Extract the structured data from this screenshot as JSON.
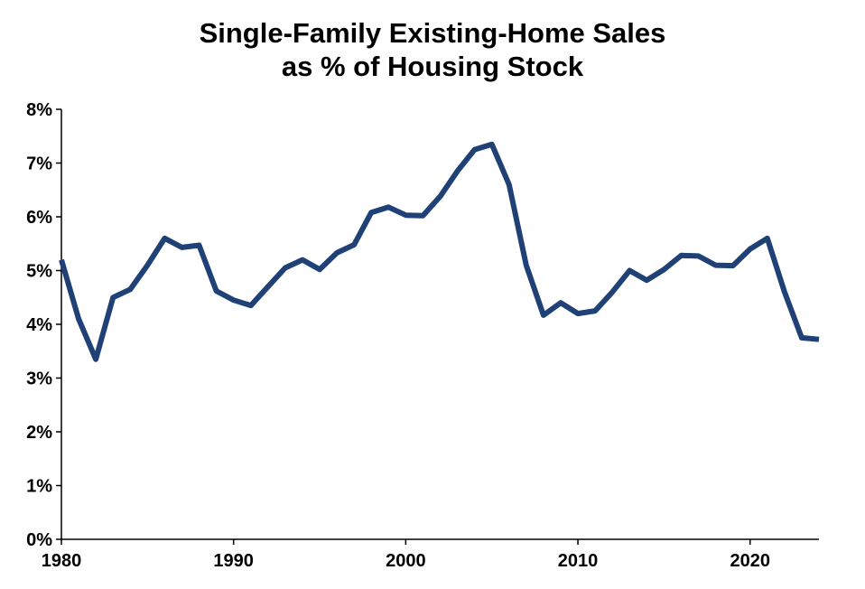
{
  "chart_data": {
    "type": "line",
    "title_lines": [
      "Single-Family Existing-Home Sales",
      "as % of Housing Stock"
    ],
    "xlabel": "",
    "ylabel": "",
    "xlim": [
      1980,
      2024
    ],
    "ylim": [
      0,
      8
    ],
    "x_ticks": [
      1980,
      1990,
      2000,
      2010,
      2020
    ],
    "x_tick_labels": [
      "1980",
      "1990",
      "2000",
      "2010",
      "2020"
    ],
    "y_ticks": [
      0,
      1,
      2,
      3,
      4,
      5,
      6,
      7,
      8
    ],
    "y_tick_labels": [
      "0%",
      "1%",
      "2%",
      "3%",
      "4%",
      "5%",
      "6%",
      "7%",
      "8%"
    ],
    "grid": false,
    "legend": "none",
    "line_color": "#1F4176",
    "series": [
      {
        "x": [
          1980,
          1981,
          1982,
          1983,
          1984,
          1985,
          1986,
          1987,
          1988,
          1989,
          1990,
          1991,
          1992,
          1993,
          1994,
          1995,
          1996,
          1997,
          1998,
          1999,
          2000,
          2001,
          2002,
          2003,
          2004,
          2005,
          2006,
          2007,
          2008,
          2009,
          2010,
          2011,
          2012,
          2013,
          2014,
          2015,
          2016,
          2017,
          2018,
          2019,
          2020,
          2021,
          2022,
          2023,
          2024
        ],
        "values": [
          5.2,
          4.1,
          3.35,
          4.5,
          4.65,
          5.1,
          5.6,
          5.43,
          5.47,
          4.62,
          4.45,
          4.35,
          4.7,
          5.05,
          5.2,
          5.02,
          5.33,
          5.48,
          6.08,
          6.18,
          6.03,
          6.02,
          6.38,
          6.85,
          7.25,
          7.35,
          6.6,
          5.1,
          4.17,
          4.4,
          4.2,
          4.25,
          4.6,
          5.0,
          4.82,
          5.02,
          5.28,
          5.27,
          5.1,
          5.09,
          5.4,
          5.6,
          4.6,
          3.75,
          3.72
        ]
      }
    ]
  }
}
